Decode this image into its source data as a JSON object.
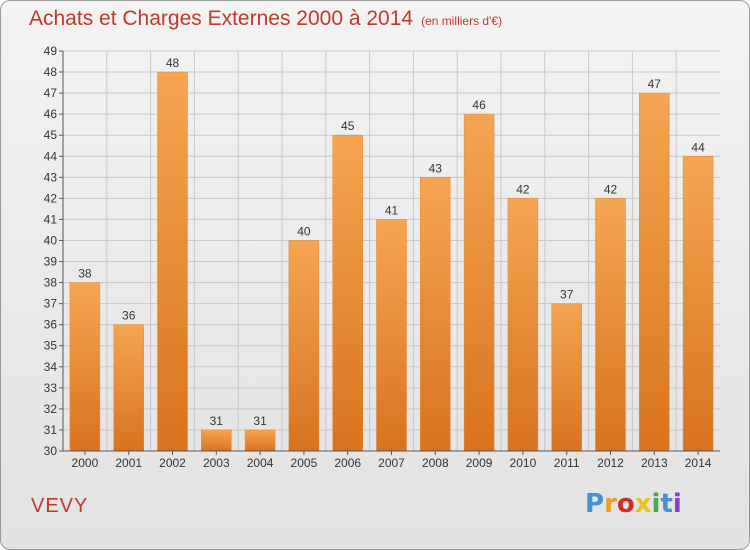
{
  "chart_data": {
    "type": "bar",
    "title": "Achats et Charges Externes 2000 à 2014",
    "subtitle": "(en milliers d'€)",
    "categories": [
      "2000",
      "2001",
      "2002",
      "2003",
      "2004",
      "2005",
      "2006",
      "2007",
      "2008",
      "2009",
      "2010",
      "2011",
      "2012",
      "2013",
      "2014"
    ],
    "values": [
      38,
      36,
      48,
      31,
      31,
      40,
      45,
      41,
      43,
      46,
      42,
      37,
      42,
      47,
      44
    ],
    "ylim": [
      30,
      49
    ],
    "yticks": [
      30,
      31,
      32,
      33,
      34,
      35,
      36,
      37,
      38,
      39,
      40,
      41,
      42,
      43,
      44,
      45,
      46,
      47,
      48,
      49
    ],
    "grid": true,
    "bar_color_top": "#f5a552",
    "bar_color_bottom": "#d9731f"
  },
  "footer": {
    "place": "VEVY",
    "logo": "Proxiti",
    "logo_colors": [
      "#4a8fd4",
      "#f0a020",
      "#d62b2b",
      "#e8c020",
      "#4aa84a",
      "#4a8fd4",
      "#8a3fbf"
    ]
  }
}
